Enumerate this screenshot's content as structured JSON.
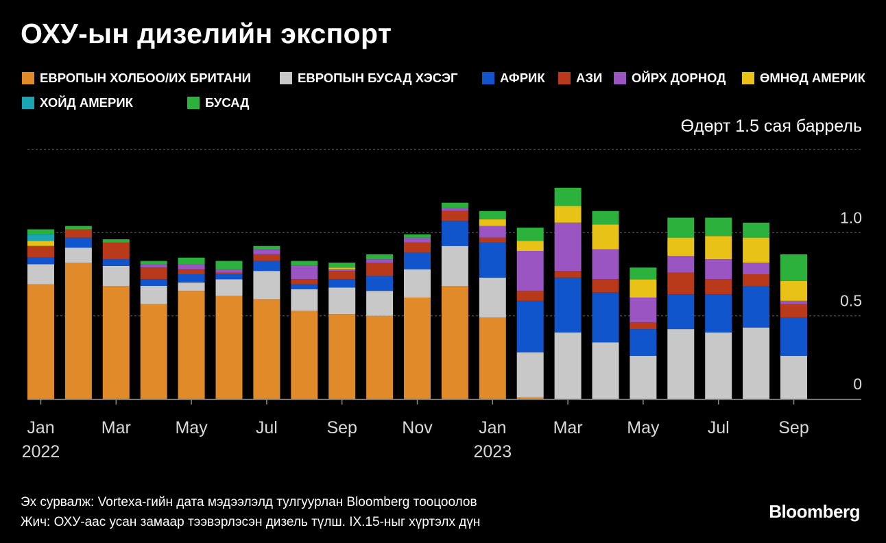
{
  "title": "ОХУ-ын дизелийн экспорт",
  "unit_label": "Өдөрт 1.5 сая баррель",
  "source_note": "Эх сурвалж: Vortexa-гийн дата мэдээлэлд тулгуурлан Bloomberg тооцоолов",
  "footnote": "Жич: ОХУ-аас усан замаар тээвэрлэсэн дизель түлш. IX.15-ныг хүртэлх дүн",
  "brand": "Bloomberg",
  "legend": [
    {
      "label": "ЕВРОПЫН ХОЛБОО/ИХ БРИТАНИ",
      "color": "#e08a2a"
    },
    {
      "label": "ЕВРОПЫН БУСАД ХЭСЭГ",
      "color": "#c8c8c8"
    },
    {
      "label": "АФРИК",
      "color": "#1155cc"
    },
    {
      "label": "АЗИ",
      "color": "#b83a1a"
    },
    {
      "label": "ОЙРХ ДОРНОД",
      "color": "#9a55c2"
    },
    {
      "label": "ӨМНӨД АМЕРИК",
      "color": "#e8c216"
    },
    {
      "label": "ХОЙД АМЕРИК",
      "color": "#1aa5b5"
    },
    {
      "label": "БУСАД",
      "color": "#2bb13c"
    }
  ],
  "chart_data": {
    "type": "bar",
    "stacked": true,
    "title": "ОХУ-ын дизелийн экспорт",
    "ylabel": "Өдөрт 1.5 сая баррель",
    "ylim": [
      0,
      1.5
    ],
    "yticks": [
      0,
      0.5,
      1.0
    ],
    "ytick_labels": [
      "0",
      "0.5",
      "1.0"
    ],
    "grid": true,
    "categories": [
      "2022-01",
      "2022-02",
      "2022-03",
      "2022-04",
      "2022-05",
      "2022-06",
      "2022-07",
      "2022-08",
      "2022-09",
      "2022-10",
      "2022-11",
      "2022-12",
      "2023-01",
      "2023-02",
      "2023-03",
      "2023-04",
      "2023-05",
      "2023-06",
      "2023-07",
      "2023-08",
      "2023-09"
    ],
    "xtick_labels": [
      {
        "index": 0,
        "label": "Jan",
        "sub": "2022"
      },
      {
        "index": 2,
        "label": "Mar"
      },
      {
        "index": 4,
        "label": "May"
      },
      {
        "index": 6,
        "label": "Jul"
      },
      {
        "index": 8,
        "label": "Sep"
      },
      {
        "index": 10,
        "label": "Nov"
      },
      {
        "index": 12,
        "label": "Jan",
        "sub": "2023"
      },
      {
        "index": 14,
        "label": "Mar"
      },
      {
        "index": 16,
        "label": "May"
      },
      {
        "index": 18,
        "label": "Jul"
      },
      {
        "index": 20,
        "label": "Sep"
      }
    ],
    "series": [
      {
        "name": "ЕВРОПЫН ХОЛБОО/ИХ БРИТАНИ",
        "color": "#e08a2a",
        "values": [
          0.69,
          0.82,
          0.68,
          0.57,
          0.65,
          0.62,
          0.6,
          0.53,
          0.51,
          0.5,
          0.61,
          0.68,
          0.49,
          0.01,
          0,
          0,
          0,
          0,
          0,
          0,
          0
        ]
      },
      {
        "name": "ЕВРОПЫН БУСАД ХЭСЭГ",
        "color": "#c8c8c8",
        "values": [
          0.12,
          0.09,
          0.12,
          0.11,
          0.05,
          0.1,
          0.17,
          0.13,
          0.16,
          0.15,
          0.17,
          0.24,
          0.24,
          0.27,
          0.4,
          0.34,
          0.26,
          0.42,
          0.4,
          0.43,
          0.26
        ]
      },
      {
        "name": "АФРИК",
        "color": "#1155cc",
        "values": [
          0.04,
          0.06,
          0.04,
          0.04,
          0.05,
          0.03,
          0.06,
          0.03,
          0.05,
          0.09,
          0.1,
          0.15,
          0.21,
          0.31,
          0.33,
          0.3,
          0.16,
          0.21,
          0.23,
          0.25,
          0.23
        ]
      },
      {
        "name": "АЗИ",
        "color": "#b83a1a",
        "values": [
          0.07,
          0.05,
          0.1,
          0.07,
          0.03,
          0.01,
          0.04,
          0.03,
          0.05,
          0.08,
          0.06,
          0.06,
          0.03,
          0.06,
          0.04,
          0.08,
          0.04,
          0.13,
          0.09,
          0.07,
          0.08
        ]
      },
      {
        "name": "ОЙРХ ДОРНОД",
        "color": "#9a55c2",
        "values": [
          0,
          0,
          0,
          0.02,
          0.03,
          0.02,
          0.03,
          0.08,
          0.01,
          0.02,
          0.03,
          0.02,
          0.07,
          0.24,
          0.29,
          0.18,
          0.15,
          0.1,
          0.12,
          0.07,
          0.02
        ]
      },
      {
        "name": "ӨМНӨД АМЕРИК",
        "color": "#e8c216",
        "values": [
          0.03,
          0,
          0,
          0,
          0,
          0,
          0,
          0,
          0.01,
          0,
          0,
          0,
          0.04,
          0.06,
          0.1,
          0.15,
          0.11,
          0.11,
          0.14,
          0.15,
          0.12
        ]
      },
      {
        "name": "ХОЙД АМЕРИК",
        "color": "#1aa5b5",
        "values": [
          0.04,
          0,
          0,
          0,
          0,
          0,
          0,
          0,
          0,
          0,
          0,
          0,
          0,
          0,
          0,
          0,
          0,
          0,
          0,
          0,
          0
        ]
      },
      {
        "name": "БУСАД",
        "color": "#2bb13c",
        "values": [
          0.03,
          0.02,
          0.02,
          0.02,
          0.04,
          0.05,
          0.02,
          0.03,
          0.03,
          0.03,
          0.02,
          0.03,
          0.05,
          0.08,
          0.11,
          0.08,
          0.07,
          0.12,
          0.11,
          0.09,
          0.16
        ]
      }
    ]
  }
}
